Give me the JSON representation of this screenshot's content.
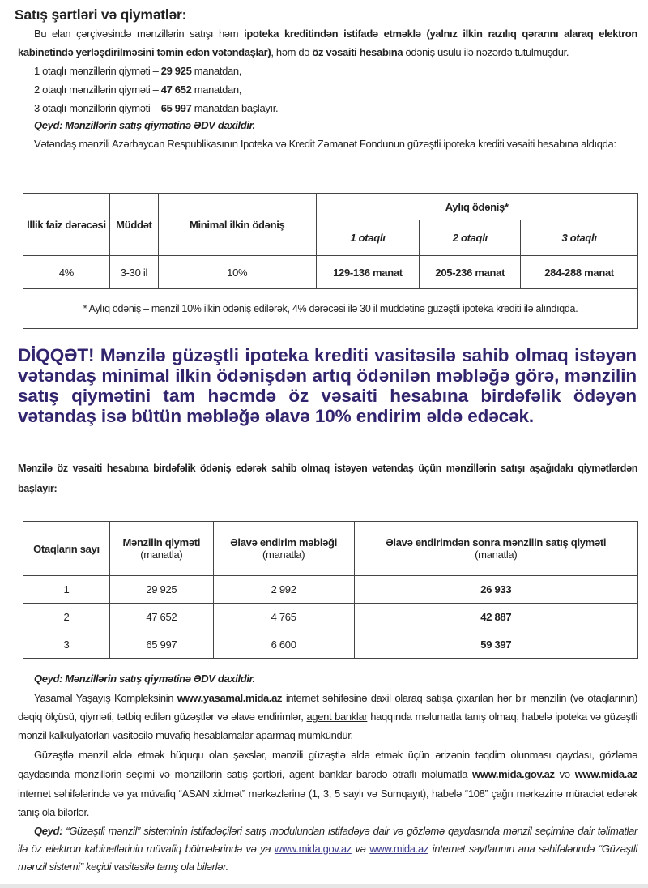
{
  "title": "Satış şərtləri və qiymətlər:",
  "intro": {
    "s0": "Bu elan çərçivəsində mənzillərin satışı həm ",
    "s1": "ipoteka kreditindən istifadə etməklə (yalnız ilkin razılıq qərarını alaraq elektron kabinetində yerləşdirilməsini təmin edən vətəndaşlar)",
    "s2": ", həm də ",
    "s3": "öz vəsaiti hesabına",
    "s4": " ödəniş üsulu ilə nəzərdə tutulmuşdur."
  },
  "prices": [
    {
      "pre": "1 otaqlı mənzillərin qiyməti – ",
      "value": "29 925",
      "post": " manatdan,"
    },
    {
      "pre": "2 otaqlı mənzillərin qiyməti – ",
      "value": "47 652",
      "post": " manatdan,"
    },
    {
      "pre": "3 otaqlı mənzillərin qiyməti – ",
      "value": "65 997",
      "post": " manatdan başlayır."
    }
  ],
  "note_vat": "Qeyd: Mənzillərin satış qiymətinə ƏDV daxildir.",
  "mortgage_intro": "Vətəndaş mənzili Azərbaycan Respublikasının İpoteka və Kredit Zəmanət Fondunun güzəştli ipoteka krediti vəsaiti hesabına aldıqda:",
  "mortgage_table": {
    "headers": {
      "rate": "İllik faiz dərəcəsi",
      "term": "Müddət",
      "down": "Minimal ilkin ödəniş",
      "monthly": "Aylıq ödəniş*",
      "r1": "1 otaqlı",
      "r2": "2 otaqlı",
      "r3": "3 otaqlı"
    },
    "row": {
      "rate": "4%",
      "term": "3-30 il",
      "down": "10%",
      "r1": "129-136 manat",
      "r2": "205-236 manat",
      "r3": "284-288 manat"
    },
    "footnote": "* Aylıq ödəniş – mənzil 10% ilkin ödəniş edilərək, 4% dərəcəsi ilə 30 il müddətinə güzəştli ipoteka krediti ilə alındıqda."
  },
  "attention": "DİQQƏT! Mənzilə güzəştli ipoteka krediti vasitəsilə sahib olmaq istəyən vətəndaş minimal ilkin ödənişdən artıq ödənilən məbləğə görə, mənzilin satış qiymətini tam həcmdə öz vəsaiti hesabına birdəfəlik ödəyən vətəndaş isə bütün məbləğə əlavə 10% endirim əldə edəcək.",
  "attention_color": "#33246e",
  "cash_intro": "Mənzilə öz vəsaiti hesabına birdəfəlik ödəniş edərək sahib olmaq istəyən vətəndaş üçün mənzillərin satışı aşağıdakı qiymətlərdən başlayır:",
  "cash_table": {
    "headers": [
      {
        "main": "Otaqların sayı",
        "sub": ""
      },
      {
        "main": "Mənzilin qiyməti",
        "sub": "(manatla)"
      },
      {
        "main": "Əlavə endirim məbləği",
        "sub": "(manatla)"
      },
      {
        "main": "Əlavə endirimdən sonra mənzilin satış qiyməti",
        "sub": "(manatla)"
      }
    ],
    "rows": [
      [
        "1",
        "29 925",
        "2 992",
        "26 933"
      ],
      [
        "2",
        "47 652",
        "4 765",
        "42 887"
      ],
      [
        "3",
        "65 997",
        "6 600",
        "59 397"
      ]
    ]
  },
  "note_vat2": "Qeyd: Mənzillərin satış qiymətinə ƏDV daxildir.",
  "yasamal": {
    "s0": "Yasamal Yaşayış Kompleksinin ",
    "s1": "www.yasamal.mida.az",
    "s2": " internet səhifəsinə daxil olaraq satışa çıxarılan hər bir mənzilin (və otaqlarının) dəqiq ölçüsü, qiyməti, tətbiq edilən güzəştlər və əlavə endirimlər, ",
    "s3": "agent banklar",
    "s4": " haqqında məlumatla tanış olmaq, habelə ipoteka və güzəştli mənzil kalkulyatorları vasitəsilə müvafiq hesablamalar aparmaq mümkündür."
  },
  "rights": {
    "s0": "Güzəştlə mənzil əldə etmək hüququ olan şəxslər, mənzili güzəştlə əldə etmək üçün ərizənin təqdim olunması qaydası, gözləmə qaydasında mənzillərin seçimi və mənzillərin satış şərtləri, ",
    "s1": "agent banklar",
    "s2": " barədə ətraflı məlumatla ",
    "s3": "www.mida.gov.az",
    "s4": " və ",
    "s5": "www.mida.az",
    "s6": " internet səhifələrində və ya müvafiq “ASAN xidmət” mərkəzlərinə (1, 3, 5 saylı və Sumqayıt), habelə “108” çağrı mərkəzinə müraciət edərək tanış ola bilərlər."
  },
  "final_note": {
    "s0": "Qeyd:",
    "s1": " “Güzəştli mənzil” sisteminin istifadəçiləri satış modulundan istifadəyə dair və gözləmə qaydasında mənzil seçiminə dair təlimatlar ilə öz elektron kabinetlərinin müvafiq bölmələrində və ya ",
    "s2": "www.mida.gov.az",
    "s3": " və ",
    "s4": "www.mida.az",
    "s5": " internet saytlarının ana səhifələrində “Güzəştli mənzil sistemi” keçidi vasitəsilə tanış ola bilərlər."
  }
}
